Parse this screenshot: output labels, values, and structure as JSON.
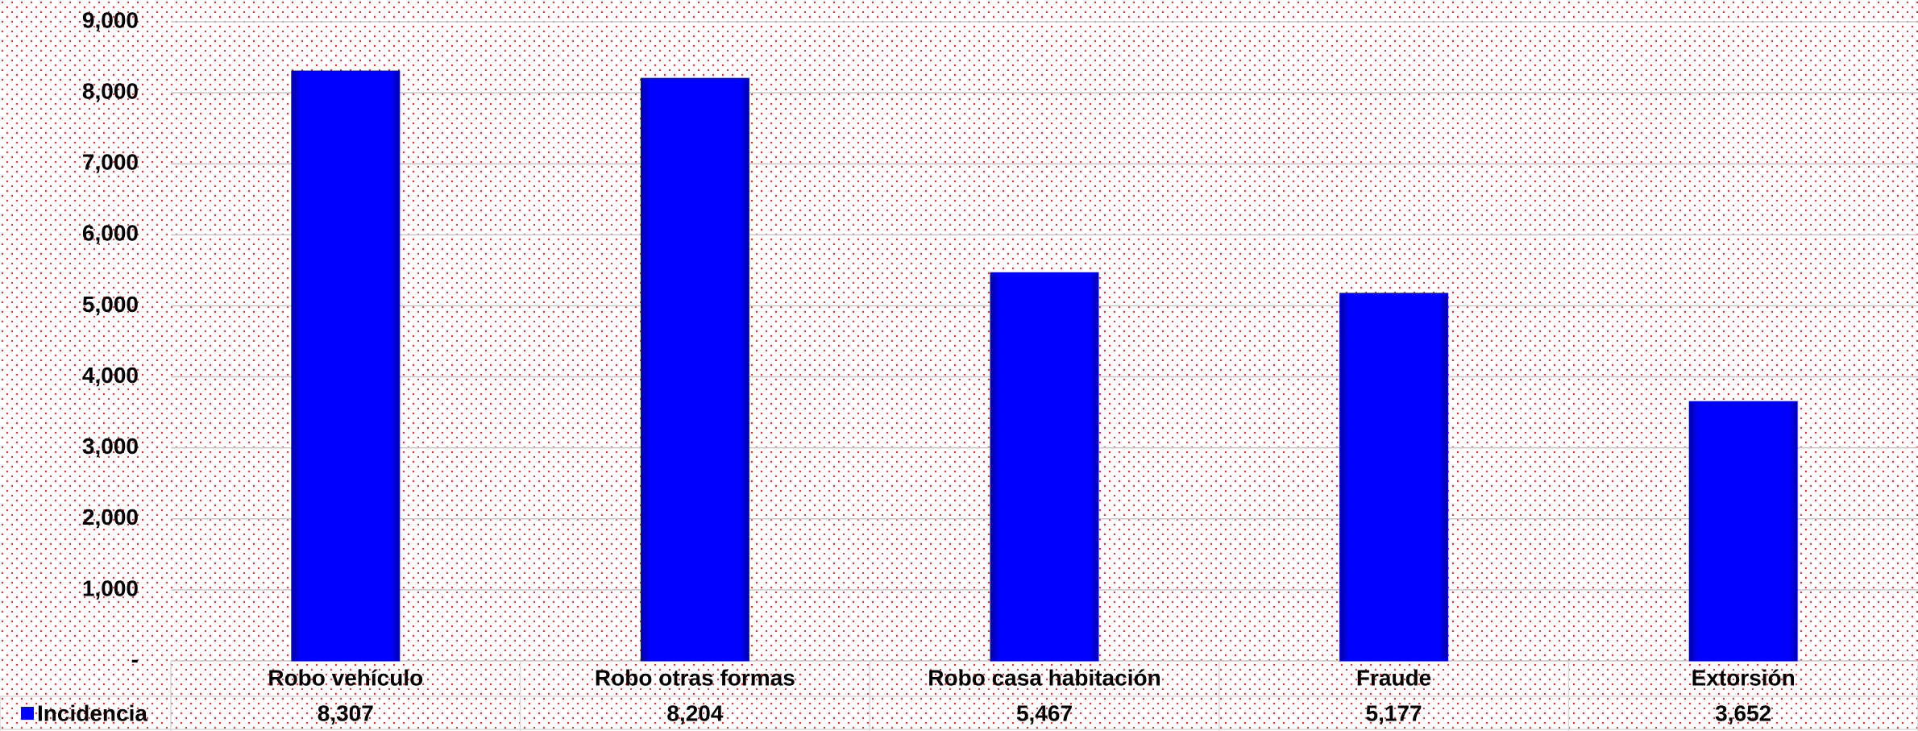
{
  "chart_data": {
    "type": "bar",
    "categories": [
      "Robo vehículo",
      "Robo otras formas",
      "Robo casa habitación",
      "Fraude",
      "Extorsión"
    ],
    "series": [
      {
        "name": "Incidencia",
        "color": "#0000ff",
        "values": [
          8307,
          8204,
          5467,
          5177,
          3652
        ],
        "value_labels": [
          "8,307",
          "8,204",
          "5,467",
          "5,177",
          "3,652"
        ]
      }
    ],
    "ylim": [
      0,
      9000
    ],
    "yticks": [
      {
        "value": 0,
        "label": "-"
      },
      {
        "value": 1000,
        "label": "1,000"
      },
      {
        "value": 2000,
        "label": "2,000"
      },
      {
        "value": 3000,
        "label": "3,000"
      },
      {
        "value": 4000,
        "label": "4,000"
      },
      {
        "value": 5000,
        "label": "5,000"
      },
      {
        "value": 6000,
        "label": "6,000"
      },
      {
        "value": 7000,
        "label": "7,000"
      },
      {
        "value": 8000,
        "label": "8,000"
      },
      {
        "value": 9000,
        "label": "9,000"
      }
    ],
    "grid": true
  }
}
